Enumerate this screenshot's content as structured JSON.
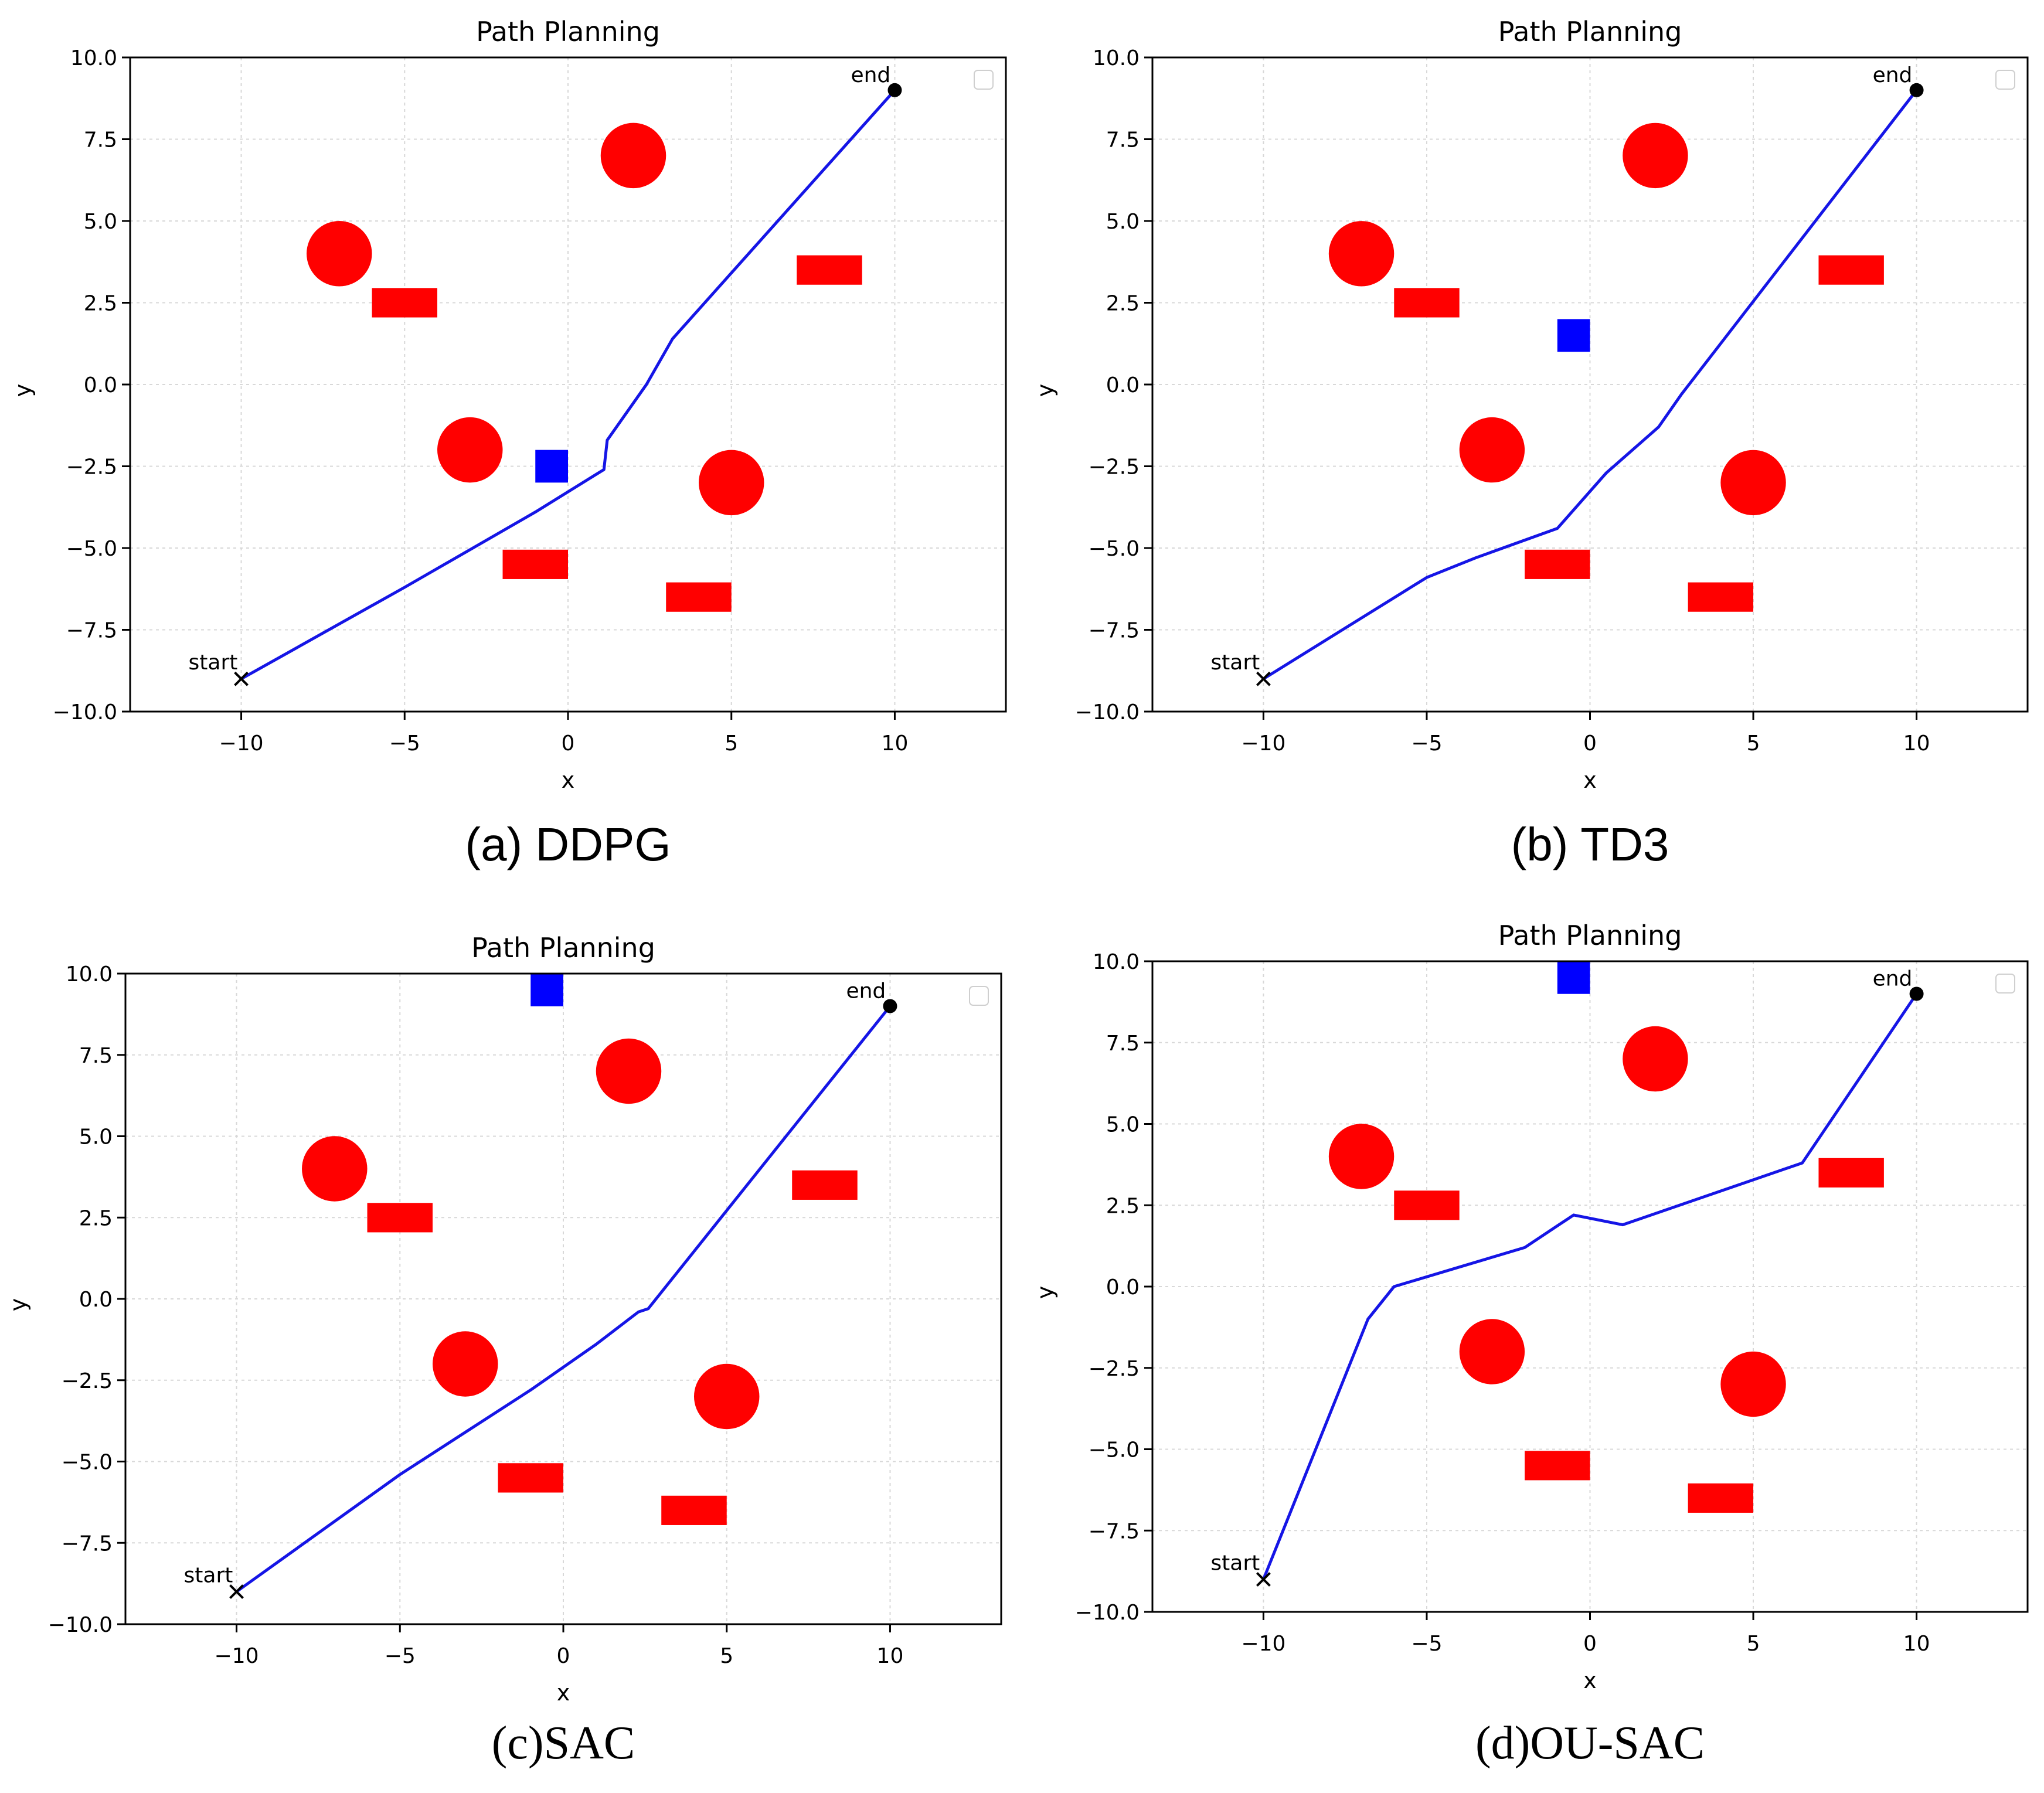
{
  "figure": {
    "colors": {
      "obstacle": "#ff0000",
      "dynamic_obstacle": "#0000ff",
      "path": "#1515e6",
      "marker": "#000000"
    }
  },
  "chart_data": [
    {
      "type": "scatter",
      "title": "Path Planning",
      "caption": "(a) DDPG",
      "xlabel": "x",
      "ylabel": "y",
      "xlim": [
        -13.4,
        13.4
      ],
      "ylim": [
        -10,
        10
      ],
      "xticks": [
        "−10",
        "−5",
        "0",
        "5",
        "10"
      ],
      "yticks": [
        "10.0",
        "7.5",
        "5.0",
        "2.5",
        "0.0",
        "−2.5",
        "−5.0",
        "−7.5",
        "−10.0"
      ],
      "grid": true,
      "legend": "top-right (empty)",
      "start": {
        "x": -10,
        "y": -9,
        "label": "start"
      },
      "end": {
        "x": 10,
        "y": 9,
        "label": "end"
      },
      "circles": [
        [
          2,
          7
        ],
        [
          -7,
          4
        ],
        [
          -3,
          -2
        ],
        [
          5,
          -3
        ]
      ],
      "rectangles": [
        [
          -5,
          2.5
        ],
        [
          8,
          3.5
        ],
        [
          -1,
          -5.5
        ],
        [
          4,
          -6.5
        ]
      ],
      "blue_square": [
        -0.5,
        -2.5
      ],
      "path": [
        [
          -10,
          -9
        ],
        [
          -5,
          -6.2
        ],
        [
          -1,
          -3.9
        ],
        [
          1.1,
          -2.6
        ],
        [
          1.2,
          -1.7
        ],
        [
          2.4,
          0
        ],
        [
          3.2,
          1.4
        ],
        [
          10,
          9
        ]
      ]
    },
    {
      "type": "scatter",
      "title": "Path Planning",
      "caption": "(b) TD3",
      "xlabel": "x",
      "ylabel": "y",
      "xlim": [
        -13.4,
        13.4
      ],
      "ylim": [
        -10,
        10
      ],
      "xticks": [
        "−10",
        "−5",
        "0",
        "5",
        "10"
      ],
      "yticks": [
        "10.0",
        "7.5",
        "5.0",
        "2.5",
        "0.0",
        "−2.5",
        "−5.0",
        "−7.5",
        "−10.0"
      ],
      "grid": true,
      "legend": "top-right (empty)",
      "start": {
        "x": -10,
        "y": -9,
        "label": "start"
      },
      "end": {
        "x": 10,
        "y": 9,
        "label": "end"
      },
      "circles": [
        [
          2,
          7
        ],
        [
          -7,
          4
        ],
        [
          -3,
          -2
        ],
        [
          5,
          -3
        ]
      ],
      "rectangles": [
        [
          -5,
          2.5
        ],
        [
          8,
          3.5
        ],
        [
          -1,
          -5.5
        ],
        [
          4,
          -6.5
        ]
      ],
      "blue_square": [
        -0.5,
        1.5
      ],
      "path": [
        [
          -10,
          -9
        ],
        [
          -5,
          -5.9
        ],
        [
          -3.5,
          -5.3
        ],
        [
          -1,
          -4.4
        ],
        [
          0.5,
          -2.7
        ],
        [
          2.1,
          -1.3
        ],
        [
          2.8,
          -0.3
        ],
        [
          10,
          9
        ]
      ]
    },
    {
      "type": "scatter",
      "title": "Path Planning",
      "caption": "(c)SAC",
      "xlabel": "x",
      "ylabel": "y",
      "xlim": [
        -13.4,
        13.4
      ],
      "ylim": [
        -10,
        10
      ],
      "xticks": [
        "−10",
        "−5",
        "0",
        "5",
        "10"
      ],
      "yticks": [
        "10.0",
        "7.5",
        "5.0",
        "2.5",
        "0.0",
        "−2.5",
        "−5.0",
        "−7.5",
        "−10.0"
      ],
      "grid": true,
      "legend": "top-right (empty)",
      "start": {
        "x": -10,
        "y": -9,
        "label": "start"
      },
      "end": {
        "x": 10,
        "y": 9,
        "label": "end"
      },
      "circles": [
        [
          2,
          7
        ],
        [
          -7,
          4
        ],
        [
          -3,
          -2
        ],
        [
          5,
          -3
        ]
      ],
      "rectangles": [
        [
          -5,
          2.5
        ],
        [
          8,
          3.5
        ],
        [
          -1,
          -5.5
        ],
        [
          4,
          -6.5
        ]
      ],
      "blue_square": [
        -0.5,
        9.5
      ],
      "path": [
        [
          -10,
          -9
        ],
        [
          -5,
          -5.4
        ],
        [
          -1,
          -2.8
        ],
        [
          1,
          -1.4
        ],
        [
          2.3,
          -0.4
        ],
        [
          2.6,
          -0.3
        ],
        [
          10,
          9
        ]
      ]
    },
    {
      "type": "scatter",
      "title": "Path Planning",
      "caption": "(d)OU-SAC",
      "xlabel": "x",
      "ylabel": "y",
      "xlim": [
        -13.4,
        13.4
      ],
      "ylim": [
        -10,
        10
      ],
      "xticks": [
        "−10",
        "−5",
        "0",
        "5",
        "10"
      ],
      "yticks": [
        "10.0",
        "7.5",
        "5.0",
        "2.5",
        "0.0",
        "−2.5",
        "−5.0",
        "−7.5",
        "−10.0"
      ],
      "grid": true,
      "legend": "top-right (empty)",
      "start": {
        "x": -10,
        "y": -9,
        "label": "start"
      },
      "end": {
        "x": 10,
        "y": 9,
        "label": "end"
      },
      "circles": [
        [
          2,
          7
        ],
        [
          -7,
          4
        ],
        [
          -3,
          -2
        ],
        [
          5,
          -3
        ]
      ],
      "rectangles": [
        [
          -5,
          2.5
        ],
        [
          8,
          3.5
        ],
        [
          -1,
          -5.5
        ],
        [
          4,
          -6.5
        ]
      ],
      "blue_square": [
        -0.5,
        9.5
      ],
      "path": [
        [
          -10,
          -9
        ],
        [
          -6.8,
          -1
        ],
        [
          -6,
          0
        ],
        [
          -2,
          1.2
        ],
        [
          -0.5,
          2.2
        ],
        [
          1,
          1.9
        ],
        [
          6.5,
          3.8
        ],
        [
          10,
          9
        ]
      ]
    }
  ]
}
